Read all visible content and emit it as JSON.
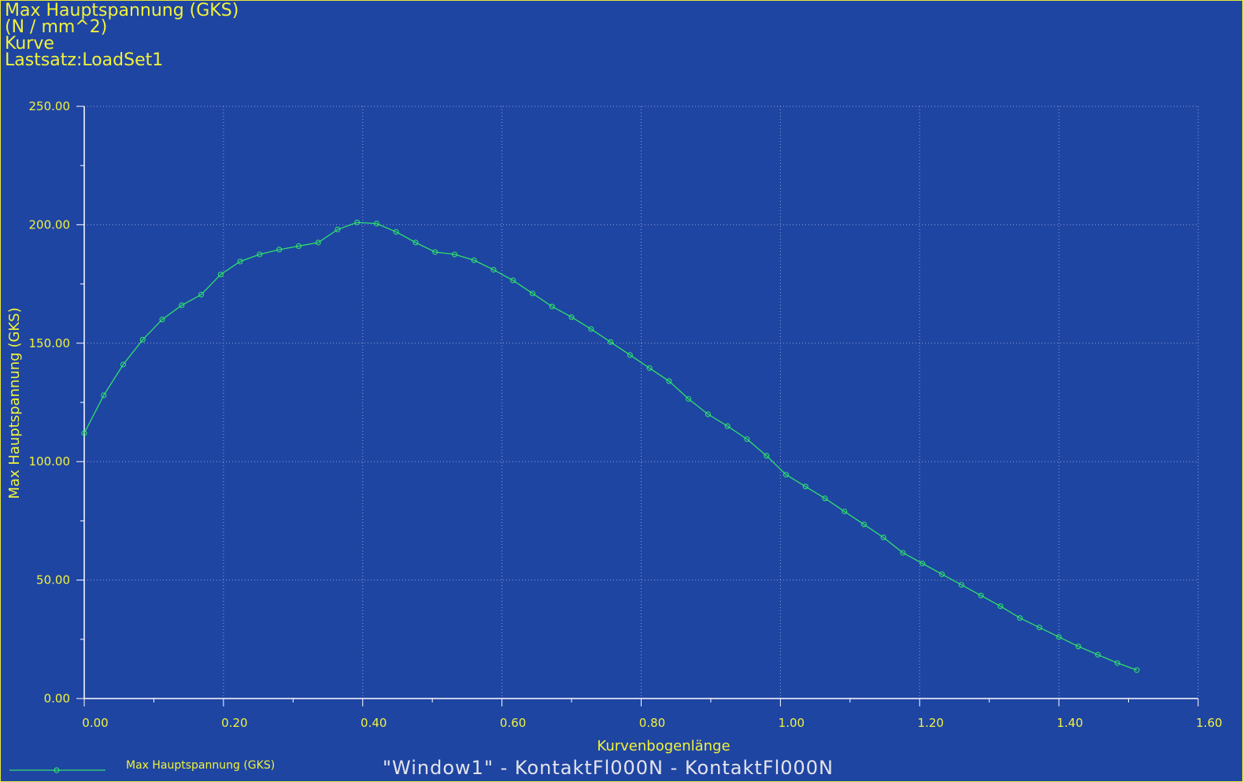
{
  "header": {
    "title": "Max Hauptspannung (GKS)",
    "units": "(N / mm^2)",
    "kind": "Kurve",
    "loadset": "Lastsatz:LoadSet1"
  },
  "footer": {
    "window_caption": "\"Window1\"  -  KontaktFl000N  -  KontaktFl000N"
  },
  "colors": {
    "background": "#1f45a3",
    "text": "#f2f23a",
    "curve": "#2ee06a",
    "grid": "#8fa3d6",
    "axis": "#ffffff"
  },
  "chart_data": {
    "type": "line",
    "title": "Max Hauptspannung (GKS)",
    "xlabel": "Kurvenbogenlänge",
    "ylabel": "Max Hauptspannung (GKS)",
    "xlim": [
      0,
      1.6
    ],
    "ylim": [
      0,
      250
    ],
    "x_ticks": [
      "0.00",
      "0.20",
      "0.40",
      "0.60",
      "0.80",
      "1.00",
      "1.20",
      "1.40",
      "1.60"
    ],
    "y_ticks": [
      "0.00",
      "50.00",
      "100.00",
      "150.00",
      "200.00",
      "250.00"
    ],
    "grid": true,
    "legend_position": "bottom-left",
    "series": [
      {
        "name": "Max Hauptspannung (GKS)",
        "x": [
          0.0,
          0.028,
          0.056,
          0.084,
          0.112,
          0.14,
          0.168,
          0.196,
          0.224,
          0.252,
          0.28,
          0.308,
          0.336,
          0.364,
          0.392,
          0.42,
          0.448,
          0.476,
          0.504,
          0.532,
          0.56,
          0.588,
          0.616,
          0.644,
          0.672,
          0.7,
          0.728,
          0.756,
          0.784,
          0.812,
          0.84,
          0.868,
          0.896,
          0.924,
          0.952,
          0.98,
          1.008,
          1.036,
          1.064,
          1.092,
          1.12,
          1.148,
          1.176,
          1.204,
          1.232,
          1.26,
          1.288,
          1.316,
          1.344,
          1.372,
          1.4,
          1.428,
          1.456,
          1.484,
          1.512
        ],
        "y": [
          112,
          128,
          141,
          151.5,
          160,
          166,
          170.5,
          179,
          184.5,
          187.5,
          189.5,
          191,
          192.5,
          198,
          201,
          200.5,
          197,
          192.5,
          188.5,
          187.5,
          185,
          181,
          176.5,
          171,
          165.5,
          161,
          156,
          150.5,
          145,
          139.5,
          134,
          126.5,
          120,
          115,
          109.5,
          102.5,
          94.5,
          89.5,
          84.5,
          79,
          73.5,
          68,
          61.5,
          57,
          52.5,
          48,
          43.5,
          39,
          34,
          30,
          26,
          22,
          18.5,
          15,
          12
        ]
      }
    ]
  }
}
